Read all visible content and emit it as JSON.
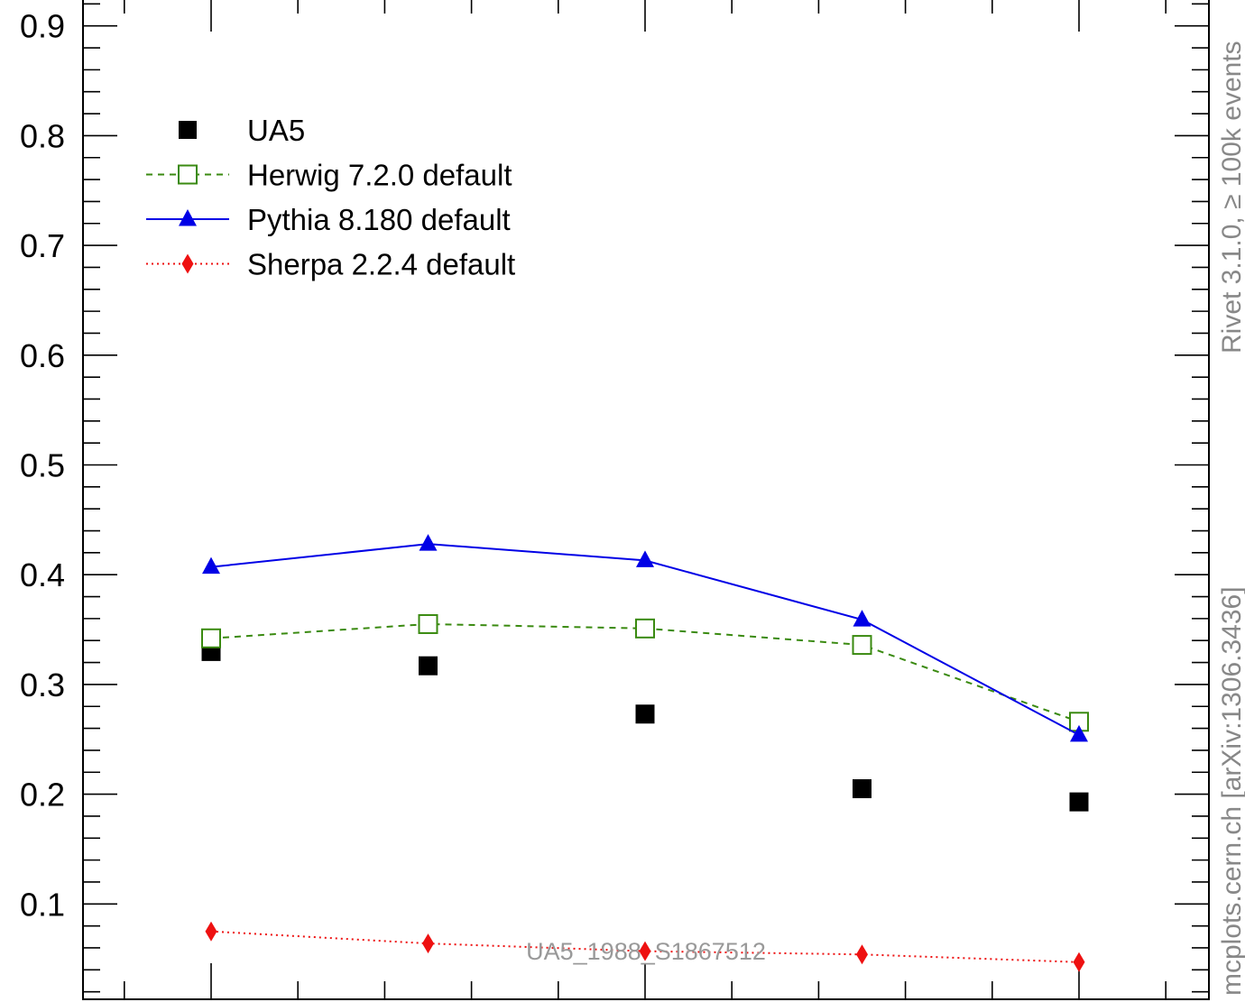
{
  "chart_data": {
    "type": "scatter",
    "x": [
      1,
      2,
      3,
      4,
      5
    ],
    "ylim": [
      0.0,
      0.93
    ],
    "yticks": [
      0.1,
      0.2,
      0.3,
      0.4,
      0.5,
      0.6,
      0.7,
      0.8,
      0.9
    ],
    "yticklabels": [
      "0.1",
      "0.2",
      "0.3",
      "0.4",
      "0.5",
      "0.6",
      "0.7",
      "0.8",
      "0.9"
    ],
    "grid": false,
    "legend_position": "top-left",
    "series": [
      {
        "name": "UA5",
        "values": [
          0.33,
          0.317,
          0.273,
          0.205,
          0.193
        ],
        "color": "#000000",
        "marker": "filled-square",
        "line": "none"
      },
      {
        "name": "Herwig 7.2.0 default",
        "values": [
          0.342,
          0.355,
          0.351,
          0.336,
          0.266
        ],
        "color": "#3a8a10",
        "marker": "open-square",
        "line": "dashed"
      },
      {
        "name": "Pythia 8.180 default",
        "values": [
          0.407,
          0.428,
          0.413,
          0.359,
          0.254
        ],
        "color": "#0000e6",
        "marker": "filled-triangle",
        "line": "solid"
      },
      {
        "name": "Sherpa 2.2.4 default",
        "values": [
          0.075,
          0.064,
          0.057,
          0.054,
          0.047
        ],
        "color": "#ee1111",
        "marker": "filled-diamond",
        "line": "dotted"
      }
    ],
    "annotations": {
      "rivet": "Rivet 3.1.0, ≥ 100k events",
      "mcplots": "mcplots.cern.ch [arXiv:1306.3436]",
      "analysis": "UA5_1988_S1867512"
    }
  }
}
